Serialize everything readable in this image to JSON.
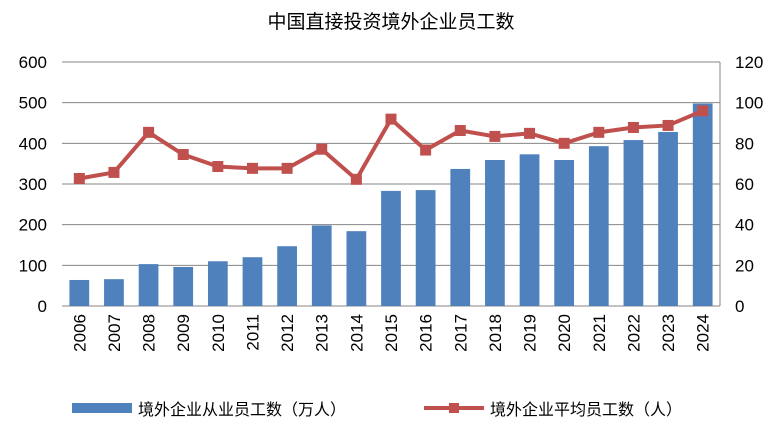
{
  "chart_data": {
    "type": "bar+line",
    "title": "中国直接投资境外企业员工数",
    "categories": [
      "2006",
      "2007",
      "2008",
      "2009",
      "2010",
      "2011",
      "2012",
      "2013",
      "2014",
      "2015",
      "2016",
      "2017",
      "2018",
      "2019",
      "2020",
      "2021",
      "2022",
      "2023",
      "2024"
    ],
    "series": [
      {
        "name": "境外企业从业员工数（万人）",
        "type": "bar",
        "axis": "left",
        "color": "#4F81BD",
        "values": [
          64,
          66,
          103,
          96,
          110,
          120,
          147,
          198,
          184,
          283,
          285,
          337,
          359,
          373,
          359,
          393,
          408,
          428,
          498
        ]
      },
      {
        "name": "境外企业平均员工数（人）",
        "type": "line",
        "axis": "right",
        "color": "#C0504D",
        "marker": "square",
        "values": [
          62.7,
          65.7,
          85.4,
          74.5,
          68.6,
          67.7,
          67.7,
          77.1,
          62.3,
          91.9,
          76.7,
          86.3,
          83.4,
          84.9,
          80.0,
          85.4,
          87.8,
          88.8,
          96.0
        ]
      }
    ],
    "y_left": {
      "range": [
        0,
        600
      ],
      "ticks": [
        "0",
        "100",
        "200",
        "300",
        "400",
        "500",
        "600"
      ]
    },
    "y_right": {
      "range": [
        0,
        120
      ],
      "ticks": [
        "0",
        "20",
        "40",
        "60",
        "80",
        "100",
        "120"
      ]
    },
    "grid": true,
    "legend": "bottom"
  }
}
